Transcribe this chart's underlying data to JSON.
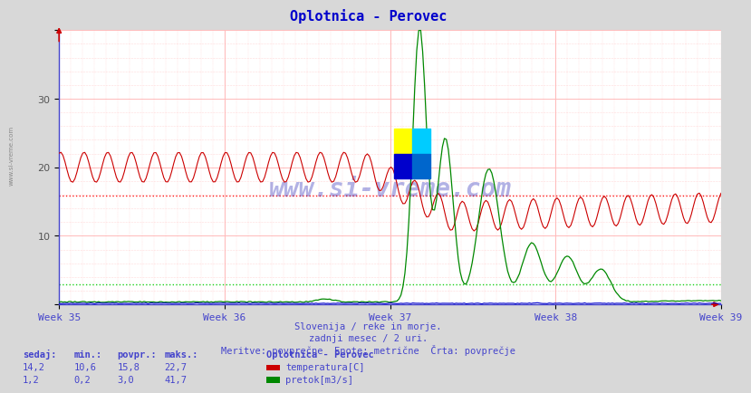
{
  "title": "Oplotnica - Perovec",
  "title_color": "#0000cc",
  "bg_color": "#d8d8d8",
  "plot_bg_color": "#ffffff",
  "xlabel_weeks": [
    "Week 35",
    "Week 36",
    "Week 37",
    "Week 38",
    "Week 39"
  ],
  "ylim": [
    0,
    40
  ],
  "xlim": [
    0,
    336
  ],
  "week_positions": [
    0,
    84,
    168,
    252,
    336
  ],
  "avg_temp": 15.8,
  "avg_flow_scaled": 2.88,
  "avg_temp_color": "#ff0000",
  "avg_flow_color": "#00cc00",
  "temp_color": "#cc0000",
  "flow_color": "#008800",
  "height_color": "#0000cc",
  "footer_line1": "Slovenija / reke in morje.",
  "footer_line2": "zadnji mesec / 2 uri.",
  "footer_line3": "Meritve: povprečne  Enote: metrične  Črta: povprečje",
  "footer_color": "#4444cc",
  "table_header": [
    "sedaj:",
    "min.:",
    "povpr.:",
    "maks.:"
  ],
  "table_color": "#4444cc",
  "legend_title": "Oplotnica - Perovec",
  "legend_entries": [
    "temperatura[C]",
    "pretok[m3/s]"
  ],
  "legend_colors": [
    "#cc0000",
    "#008800"
  ],
  "temp_sedaj": "14,2",
  "temp_min": "10,6",
  "temp_avg": "15,8",
  "temp_max": "22,7",
  "flow_sedaj": "1,2",
  "flow_min": "0,2",
  "flow_avg": "3,0",
  "flow_max": "41,7",
  "watermark": "www.si-vreme.com",
  "watermark_color": "#0000aa",
  "flow_scale": 0.9569,
  "n_points": 336
}
